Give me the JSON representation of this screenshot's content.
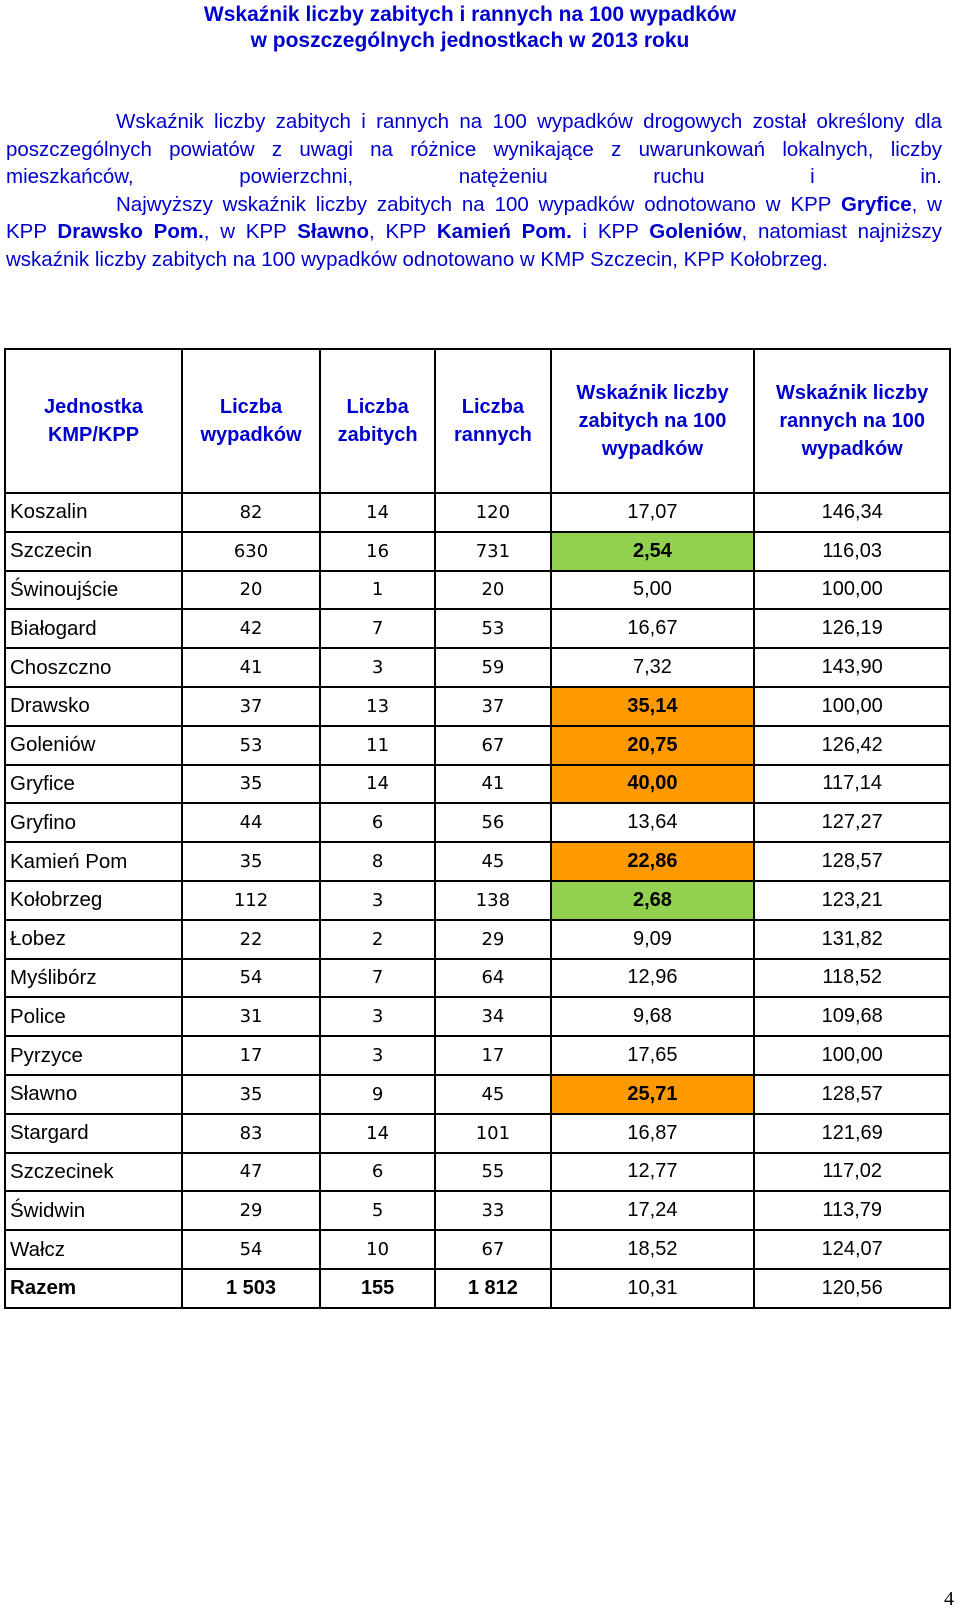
{
  "title": {
    "line1": "Wskaźnik liczby zabitych i rannych na 100 wypadków",
    "line2": "w poszczególnych jednostkach w 2013 roku"
  },
  "intro": {
    "p1": "Wskaźnik liczby zabitych i rannych na 100 wypadków drogowych został określony dla poszczególnych powiatów z uwagi na różnice wynikające z uwarunkowań lokalnych, liczby mieszkańców, powierzchni, natężeniu ruchu i in.",
    "p2_a": "Najwyższy wskaźnik liczby zabitych na 100 wypadków odnotowano w KPP ",
    "p2_b": "Gryfice",
    "p2_c": ", w KPP ",
    "p2_d": "Drawsko Pom.",
    "p2_e": ", w KPP ",
    "p2_f": "Sławno",
    "p2_g": ", KPP ",
    "p2_h": "Kamień Pom.",
    "p2_i": " i KPP ",
    "p2_j": "Goleniów",
    "p2_k": ", natomiast najniższy wskaźnik liczby zabitych na 100 wypadków odnotowano w KMP Szczecin, KPP Kołobrzeg."
  },
  "table": {
    "headers": [
      "Jednostka KMP/KPP",
      "Liczba wypadków",
      "Liczba zabitych",
      "Liczba rannych",
      "Wskaźnik liczby zabitych na 100 wypadków",
      "Wskaźnik liczby rannych na 100 wypadków"
    ],
    "rows": [
      {
        "unit": "Koszalin",
        "accidents": "82",
        "killed": "14",
        "injured": "120",
        "killed_rate": "17,07",
        "injured_rate": "146,34",
        "highlight": ""
      },
      {
        "unit": "Szczecin",
        "accidents": "630",
        "killed": "16",
        "injured": "731",
        "killed_rate": "2,54",
        "injured_rate": "116,03",
        "highlight": "green"
      },
      {
        "unit": "Świnoujście",
        "accidents": "20",
        "killed": "1",
        "injured": "20",
        "killed_rate": "5,00",
        "injured_rate": "100,00",
        "highlight": ""
      },
      {
        "unit": "Białogard",
        "accidents": "42",
        "killed": "7",
        "injured": "53",
        "killed_rate": "16,67",
        "injured_rate": "126,19",
        "highlight": ""
      },
      {
        "unit": "Choszczno",
        "accidents": "41",
        "killed": "3",
        "injured": "59",
        "killed_rate": "7,32",
        "injured_rate": "143,90",
        "highlight": ""
      },
      {
        "unit": "Drawsko",
        "accidents": "37",
        "killed": "13",
        "injured": "37",
        "killed_rate": "35,14",
        "injured_rate": "100,00",
        "highlight": "orange"
      },
      {
        "unit": "Goleniów",
        "accidents": "53",
        "killed": "11",
        "injured": "67",
        "killed_rate": "20,75",
        "injured_rate": "126,42",
        "highlight": "orange"
      },
      {
        "unit": "Gryfice",
        "accidents": "35",
        "killed": "14",
        "injured": "41",
        "killed_rate": "40,00",
        "injured_rate": "117,14",
        "highlight": "orange"
      },
      {
        "unit": "Gryfino",
        "accidents": "44",
        "killed": "6",
        "injured": "56",
        "killed_rate": "13,64",
        "injured_rate": "127,27",
        "highlight": ""
      },
      {
        "unit": "Kamień Pom",
        "accidents": "35",
        "killed": "8",
        "injured": "45",
        "killed_rate": "22,86",
        "injured_rate": "128,57",
        "highlight": "orange"
      },
      {
        "unit": "Kołobrzeg",
        "accidents": "112",
        "killed": "3",
        "injured": "138",
        "killed_rate": "2,68",
        "injured_rate": "123,21",
        "highlight": "green"
      },
      {
        "unit": "Łobez",
        "accidents": "22",
        "killed": "2",
        "injured": "29",
        "killed_rate": "9,09",
        "injured_rate": "131,82",
        "highlight": ""
      },
      {
        "unit": "Myślibórz",
        "accidents": "54",
        "killed": "7",
        "injured": "64",
        "killed_rate": "12,96",
        "injured_rate": "118,52",
        "highlight": ""
      },
      {
        "unit": "Police",
        "accidents": "31",
        "killed": "3",
        "injured": "34",
        "killed_rate": "9,68",
        "injured_rate": "109,68",
        "highlight": ""
      },
      {
        "unit": "Pyrzyce",
        "accidents": "17",
        "killed": "3",
        "injured": "17",
        "killed_rate": "17,65",
        "injured_rate": "100,00",
        "highlight": ""
      },
      {
        "unit": "Sławno",
        "accidents": "35",
        "killed": "9",
        "injured": "45",
        "killed_rate": "25,71",
        "injured_rate": "128,57",
        "highlight": "orange"
      },
      {
        "unit": "Stargard",
        "accidents": "83",
        "killed": "14",
        "injured": "101",
        "killed_rate": "16,87",
        "injured_rate": "121,69",
        "highlight": ""
      },
      {
        "unit": "Szczecinek",
        "accidents": "47",
        "killed": "6",
        "injured": "55",
        "killed_rate": "12,77",
        "injured_rate": "117,02",
        "highlight": ""
      },
      {
        "unit": "Świdwin",
        "accidents": "29",
        "killed": "5",
        "injured": "33",
        "killed_rate": "17,24",
        "injured_rate": "113,79",
        "highlight": ""
      },
      {
        "unit": "Wałcz",
        "accidents": "54",
        "killed": "10",
        "injured": "67",
        "killed_rate": "18,52",
        "injured_rate": "124,07",
        "highlight": ""
      }
    ],
    "total": {
      "unit": "Razem",
      "accidents": "1 503",
      "killed": "155",
      "injured": "1 812",
      "killed_rate": "10,31",
      "injured_rate": "120,56"
    }
  },
  "colors": {
    "text_blue": "#0000cc",
    "highlight_green": "#92d050",
    "highlight_orange": "#ff9900"
  },
  "page_number": "4"
}
